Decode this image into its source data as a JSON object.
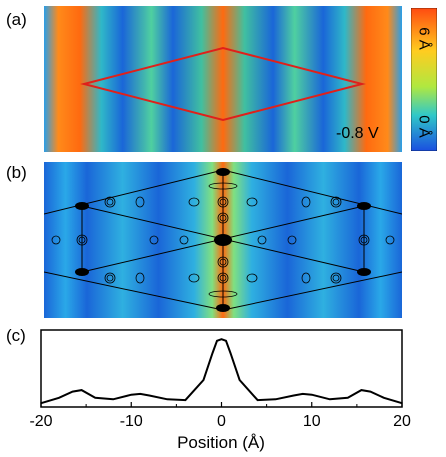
{
  "panels": {
    "a": {
      "label": "(a)",
      "bias": "-0.8 V",
      "colorbar": {
        "top_label": "6 Å",
        "bottom_label": "0 Å"
      }
    },
    "b": {
      "label": "(b)"
    },
    "c": {
      "label": "(c)",
      "chart_data": {
        "type": "line",
        "title": "",
        "xlabel": "Position (Å)",
        "ylabel": "",
        "xlim": [
          -20,
          20
        ],
        "xticks": [
          "-20",
          "-10",
          "0",
          "10",
          "20"
        ],
        "grid": false,
        "series": [
          {
            "x": [
              -20,
              -18,
              -16.5,
              -15.5,
              -14,
              -12,
              -10,
              -9,
              -8,
              -6,
              -4,
              -2,
              -1,
              -0.5,
              0,
              0.5,
              1,
              2,
              4,
              6,
              8,
              9,
              10,
              12,
              14,
              15.5,
              16.5,
              18,
              20
            ],
            "y": [
              0.05,
              0.12,
              0.2,
              0.22,
              0.12,
              0.1,
              0.16,
              0.17,
              0.15,
              0.1,
              0.09,
              0.35,
              0.7,
              0.86,
              0.88,
              0.86,
              0.7,
              0.35,
              0.09,
              0.1,
              0.15,
              0.17,
              0.16,
              0.1,
              0.12,
              0.22,
              0.2,
              0.12,
              0.05
            ]
          }
        ]
      }
    }
  }
}
